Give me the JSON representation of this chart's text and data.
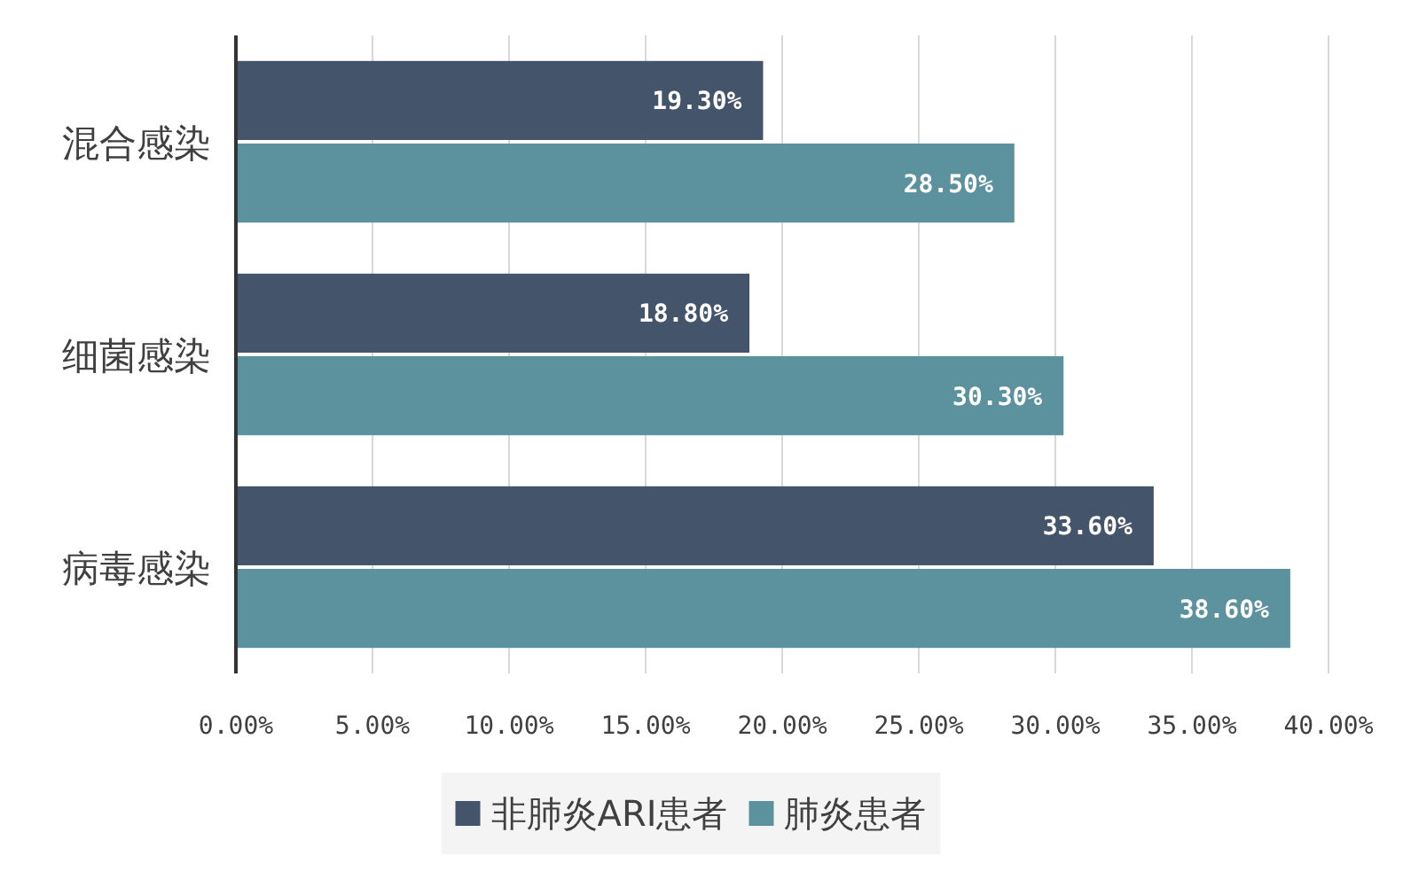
{
  "chart_data": {
    "type": "bar",
    "orientation": "horizontal",
    "categories": [
      "混合感染",
      "细菌感染",
      "病毒感染"
    ],
    "series": [
      {
        "name": "非肺炎ARI患者",
        "color": "#44546a",
        "values": [
          19.3,
          18.8,
          33.6
        ],
        "value_labels": [
          "19.30%",
          "18.80%",
          "33.60%"
        ]
      },
      {
        "name": "肺炎患者",
        "color": "#5b929e",
        "values": [
          28.5,
          30.3,
          38.6
        ],
        "value_labels": [
          "28.50%",
          "30.30%",
          "38.60%"
        ]
      }
    ],
    "xlim": [
      0,
      40
    ],
    "xticks": [
      {
        "value": 0,
        "label": "0.00%"
      },
      {
        "value": 5,
        "label": "5.00%"
      },
      {
        "value": 10,
        "label": "10.00%"
      },
      {
        "value": 15,
        "label": "15.00%"
      },
      {
        "value": 20,
        "label": "20.00%"
      },
      {
        "value": 25,
        "label": "25.00%"
      },
      {
        "value": 30,
        "label": "30.00%"
      },
      {
        "value": 35,
        "label": "35.00%"
      },
      {
        "value": 40,
        "label": "40.00%"
      }
    ],
    "grid": "x",
    "legend": "bottom"
  }
}
